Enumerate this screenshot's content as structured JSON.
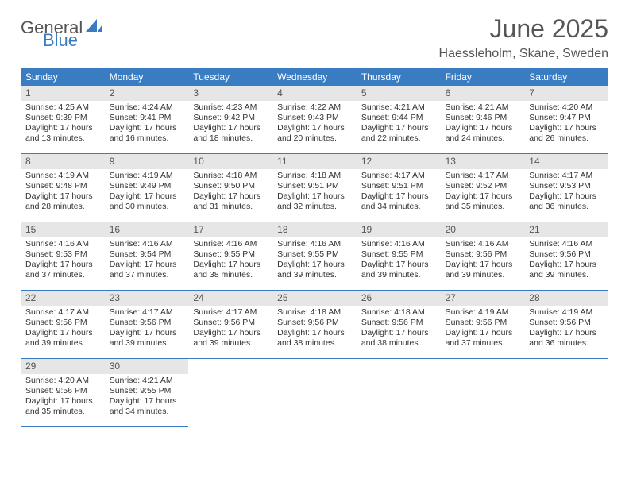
{
  "logo": {
    "part1": "General",
    "part2": "Blue"
  },
  "header": {
    "title": "June 2025",
    "location": "Haessleholm, Skane, Sweden"
  },
  "colors": {
    "accent": "#3a7cc2",
    "daynum_bg": "#e6e6e6",
    "text": "#333333",
    "muted": "#555555",
    "background": "#ffffff"
  },
  "typography": {
    "title_fontsize": 32,
    "location_fontsize": 16,
    "dayhead_fontsize": 12,
    "body_fontsize": 10.5
  },
  "calendar": {
    "columns": 7,
    "headers": [
      "Sunday",
      "Monday",
      "Tuesday",
      "Wednesday",
      "Thursday",
      "Friday",
      "Saturday"
    ],
    "days": [
      {
        "n": 1,
        "sunrise": "4:25 AM",
        "sunset": "9:39 PM",
        "daylight": "17 hours and 13 minutes."
      },
      {
        "n": 2,
        "sunrise": "4:24 AM",
        "sunset": "9:41 PM",
        "daylight": "17 hours and 16 minutes."
      },
      {
        "n": 3,
        "sunrise": "4:23 AM",
        "sunset": "9:42 PM",
        "daylight": "17 hours and 18 minutes."
      },
      {
        "n": 4,
        "sunrise": "4:22 AM",
        "sunset": "9:43 PM",
        "daylight": "17 hours and 20 minutes."
      },
      {
        "n": 5,
        "sunrise": "4:21 AM",
        "sunset": "9:44 PM",
        "daylight": "17 hours and 22 minutes."
      },
      {
        "n": 6,
        "sunrise": "4:21 AM",
        "sunset": "9:46 PM",
        "daylight": "17 hours and 24 minutes."
      },
      {
        "n": 7,
        "sunrise": "4:20 AM",
        "sunset": "9:47 PM",
        "daylight": "17 hours and 26 minutes."
      },
      {
        "n": 8,
        "sunrise": "4:19 AM",
        "sunset": "9:48 PM",
        "daylight": "17 hours and 28 minutes."
      },
      {
        "n": 9,
        "sunrise": "4:19 AM",
        "sunset": "9:49 PM",
        "daylight": "17 hours and 30 minutes."
      },
      {
        "n": 10,
        "sunrise": "4:18 AM",
        "sunset": "9:50 PM",
        "daylight": "17 hours and 31 minutes."
      },
      {
        "n": 11,
        "sunrise": "4:18 AM",
        "sunset": "9:51 PM",
        "daylight": "17 hours and 32 minutes."
      },
      {
        "n": 12,
        "sunrise": "4:17 AM",
        "sunset": "9:51 PM",
        "daylight": "17 hours and 34 minutes."
      },
      {
        "n": 13,
        "sunrise": "4:17 AM",
        "sunset": "9:52 PM",
        "daylight": "17 hours and 35 minutes."
      },
      {
        "n": 14,
        "sunrise": "4:17 AM",
        "sunset": "9:53 PM",
        "daylight": "17 hours and 36 minutes."
      },
      {
        "n": 15,
        "sunrise": "4:16 AM",
        "sunset": "9:53 PM",
        "daylight": "17 hours and 37 minutes."
      },
      {
        "n": 16,
        "sunrise": "4:16 AM",
        "sunset": "9:54 PM",
        "daylight": "17 hours and 37 minutes."
      },
      {
        "n": 17,
        "sunrise": "4:16 AM",
        "sunset": "9:55 PM",
        "daylight": "17 hours and 38 minutes."
      },
      {
        "n": 18,
        "sunrise": "4:16 AM",
        "sunset": "9:55 PM",
        "daylight": "17 hours and 39 minutes."
      },
      {
        "n": 19,
        "sunrise": "4:16 AM",
        "sunset": "9:55 PM",
        "daylight": "17 hours and 39 minutes."
      },
      {
        "n": 20,
        "sunrise": "4:16 AM",
        "sunset": "9:56 PM",
        "daylight": "17 hours and 39 minutes."
      },
      {
        "n": 21,
        "sunrise": "4:16 AM",
        "sunset": "9:56 PM",
        "daylight": "17 hours and 39 minutes."
      },
      {
        "n": 22,
        "sunrise": "4:17 AM",
        "sunset": "9:56 PM",
        "daylight": "17 hours and 39 minutes."
      },
      {
        "n": 23,
        "sunrise": "4:17 AM",
        "sunset": "9:56 PM",
        "daylight": "17 hours and 39 minutes."
      },
      {
        "n": 24,
        "sunrise": "4:17 AM",
        "sunset": "9:56 PM",
        "daylight": "17 hours and 39 minutes."
      },
      {
        "n": 25,
        "sunrise": "4:18 AM",
        "sunset": "9:56 PM",
        "daylight": "17 hours and 38 minutes."
      },
      {
        "n": 26,
        "sunrise": "4:18 AM",
        "sunset": "9:56 PM",
        "daylight": "17 hours and 38 minutes."
      },
      {
        "n": 27,
        "sunrise": "4:19 AM",
        "sunset": "9:56 PM",
        "daylight": "17 hours and 37 minutes."
      },
      {
        "n": 28,
        "sunrise": "4:19 AM",
        "sunset": "9:56 PM",
        "daylight": "17 hours and 36 minutes."
      },
      {
        "n": 29,
        "sunrise": "4:20 AM",
        "sunset": "9:56 PM",
        "daylight": "17 hours and 35 minutes."
      },
      {
        "n": 30,
        "sunrise": "4:21 AM",
        "sunset": "9:55 PM",
        "daylight": "17 hours and 34 minutes."
      }
    ],
    "labels": {
      "sunrise_prefix": "Sunrise: ",
      "sunset_prefix": "Sunset: ",
      "daylight_prefix": "Daylight: "
    }
  }
}
